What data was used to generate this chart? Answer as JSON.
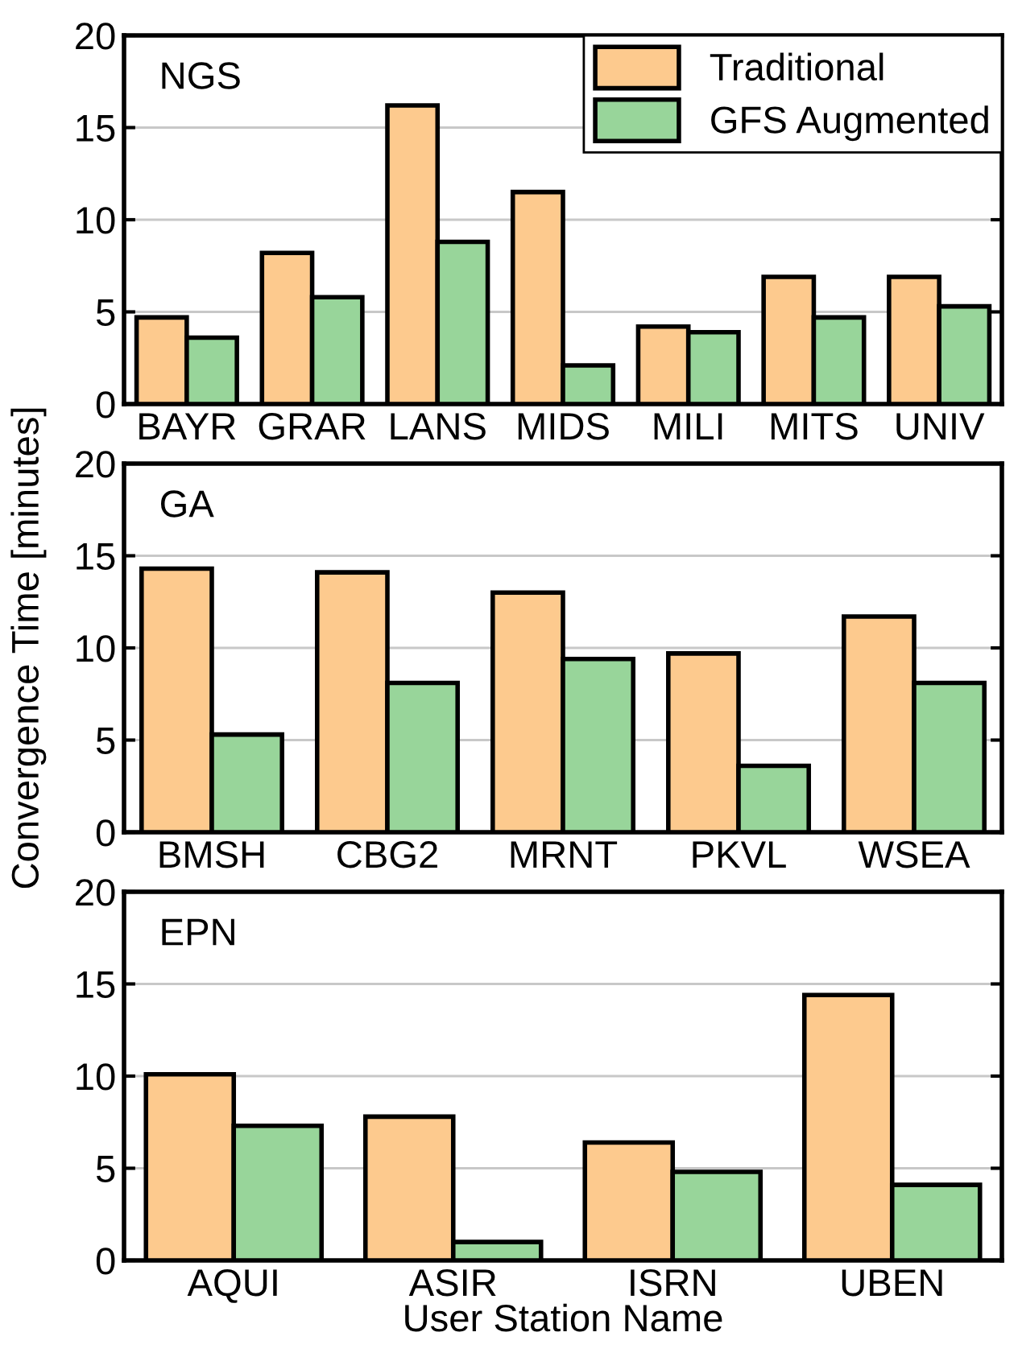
{
  "chart_data": [
    {
      "type": "bar",
      "title": "NGS",
      "categories": [
        "BAYR",
        "GRAR",
        "LANS",
        "MIDS",
        "MILI",
        "MITS",
        "UNIV"
      ],
      "series": [
        {
          "name": "Traditional",
          "color": "#fdca8e",
          "values": [
            4.7,
            8.2,
            16.2,
            11.5,
            4.2,
            6.9,
            6.9
          ]
        },
        {
          "name": "GFS Augmented",
          "color": "#98d59a",
          "values": [
            3.6,
            5.8,
            8.8,
            2.1,
            3.9,
            4.7,
            5.3
          ]
        }
      ],
      "ylim": [
        0,
        20
      ],
      "yticks": [
        0,
        5,
        10,
        15,
        20
      ],
      "grid": "y",
      "legend": "top right"
    },
    {
      "type": "bar",
      "title": "GA",
      "ylabel": "Convergence Time [minutes]",
      "categories": [
        "BMSH",
        "CBG2",
        "MRNT",
        "PKVL",
        "WSEA"
      ],
      "series": [
        {
          "color": "#fdca8e",
          "values": [
            14.3,
            14.1,
            13.0,
            9.7,
            11.7
          ]
        },
        {
          "color": "#98d59a",
          "values": [
            5.3,
            8.1,
            9.4,
            3.6,
            8.1
          ]
        }
      ],
      "ylim": [
        0,
        20
      ],
      "yticks": [
        0,
        5,
        10,
        15,
        20
      ],
      "grid": "y"
    },
    {
      "type": "bar",
      "title": "EPN",
      "xlabel": "User Station Name",
      "categories": [
        "AQUI",
        "ASIR",
        "ISRN",
        "UBEN"
      ],
      "series": [
        {
          "color": "#fdca8e",
          "values": [
            10.1,
            7.8,
            6.4,
            14.4
          ]
        },
        {
          "color": "#98d59a",
          "values": [
            7.3,
            1.0,
            4.8,
            4.1
          ]
        }
      ],
      "ylim": [
        0,
        20
      ],
      "yticks": [
        0,
        5,
        10,
        15,
        20
      ],
      "grid": "y"
    }
  ]
}
